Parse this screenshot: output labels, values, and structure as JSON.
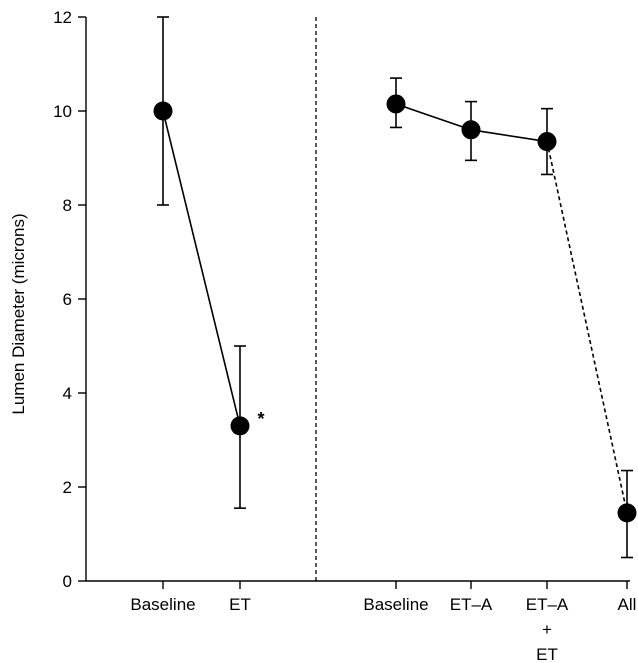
{
  "chart_data": {
    "type": "scatter",
    "ylabel": "Lumen Diameter (microns)",
    "ylim": [
      0,
      12
    ],
    "yticks": [
      0,
      2,
      4,
      6,
      8,
      10,
      12
    ],
    "categories": [
      "Baseline",
      "ET",
      "Baseline",
      "ET–A",
      "ET–A\n+\nET",
      "All"
    ],
    "divider": "dashed vertical line between the two groups",
    "series": [
      {
        "points": [
          {
            "x": "Baseline",
            "y": 10.0,
            "err_low": 8.0,
            "err_high": 12.0
          },
          {
            "x": "ET",
            "y": 3.3,
            "err_low": 1.55,
            "err_high": 5.0
          }
        ],
        "line": "solid"
      },
      {
        "points": [
          {
            "x": "Baseline",
            "y": 10.15,
            "err_low": 9.65,
            "err_high": 10.7
          },
          {
            "x": "ET–A",
            "y": 9.6,
            "err_low": 8.95,
            "err_high": 10.2
          },
          {
            "x": "ET–A\n+\nET",
            "y": 9.35,
            "err_low": 8.65,
            "err_high": 10.05
          }
        ],
        "line": "solid"
      },
      {
        "points": [
          {
            "x": "ET–A\n+\nET",
            "y": 9.35
          },
          {
            "x": "All",
            "y": 1.45,
            "err_low": 0.5,
            "err_high": 2.35
          }
        ],
        "line": "dashed"
      }
    ],
    "annotations": [
      {
        "text": "*",
        "near": "ET"
      }
    ],
    "grid": false,
    "legend": "none"
  }
}
